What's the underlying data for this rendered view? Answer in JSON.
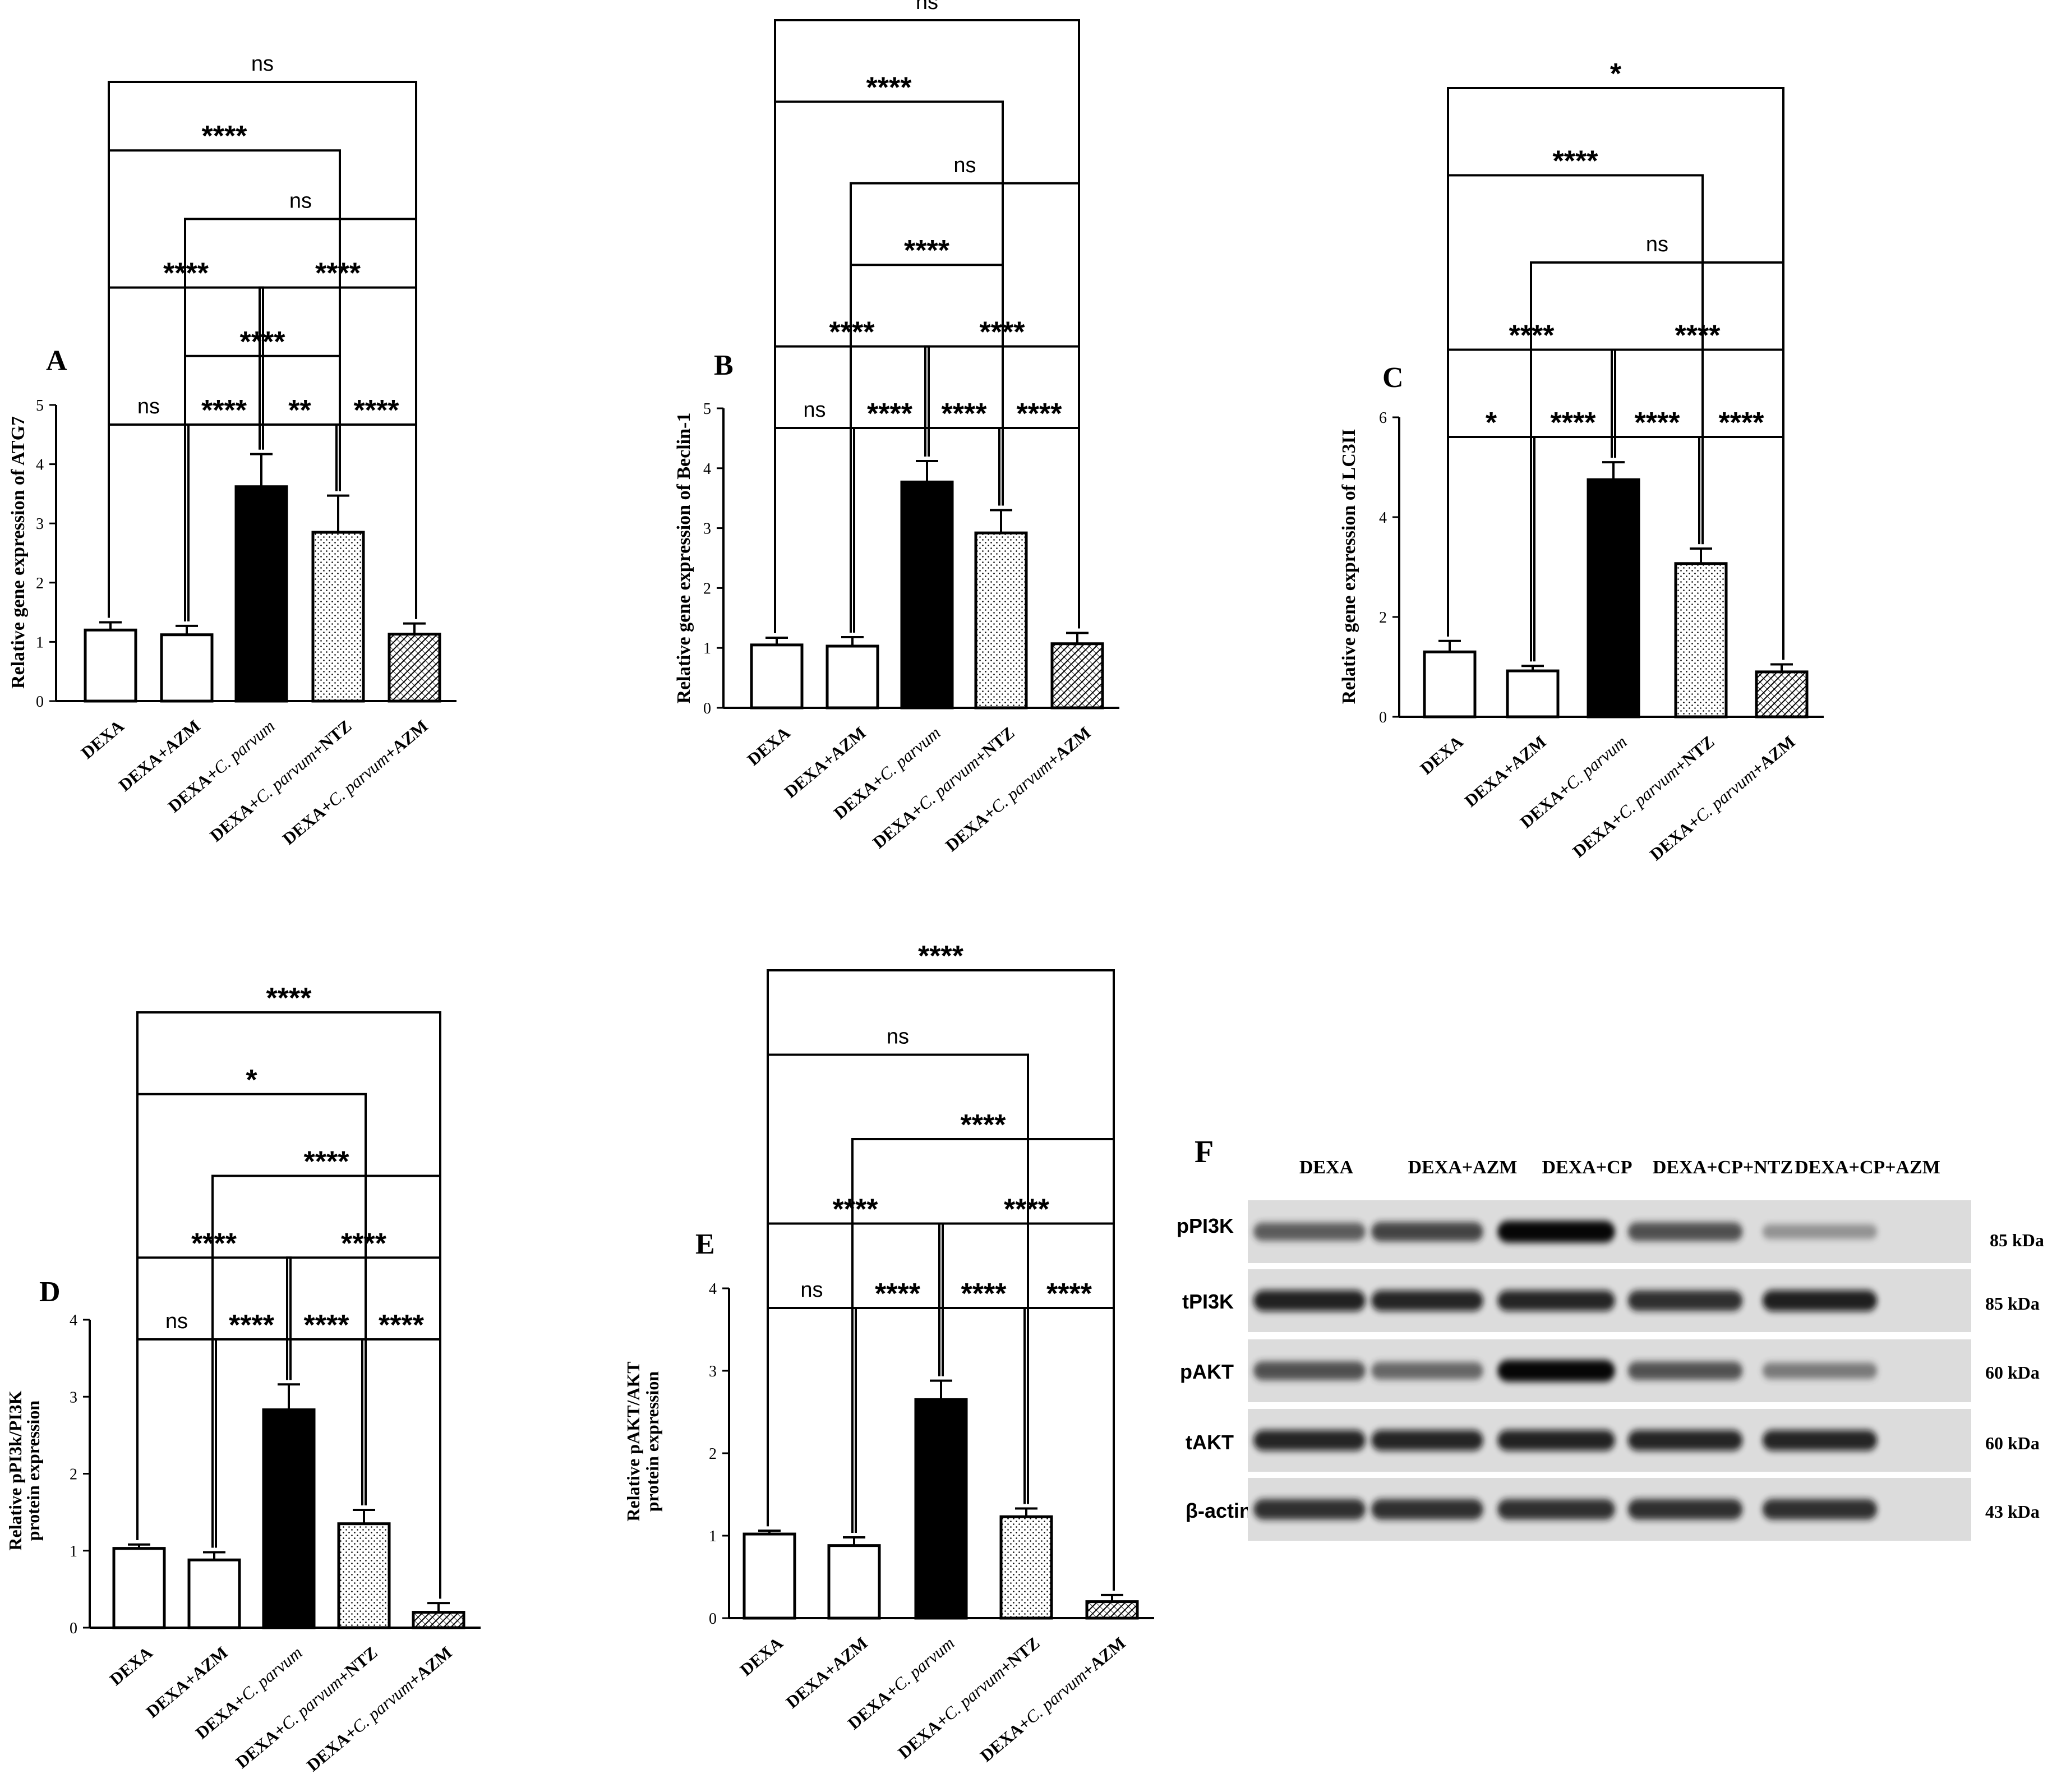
{
  "figure": {
    "panels": [
      {
        "label": "A",
        "chart_data": {
          "type": "bar",
          "ylabel": "Relative gene expression of ATG7",
          "ylim": [
            0,
            5
          ],
          "yticks": [
            "0",
            "1",
            "2",
            "3",
            "4",
            "5"
          ],
          "categories": [
            [
              "DEXA"
            ],
            [
              "DEXA+AZM"
            ],
            [
              "DEXA+",
              "C. parvum"
            ],
            [
              "DEXA+",
              "C. parvum",
              "+",
              "NTZ"
            ],
            [
              "DEXA+",
              "C. parvum",
              "+",
              "AZM"
            ]
          ],
          "values": [
            1.2,
            1.12,
            3.62,
            2.85,
            1.13
          ],
          "errors": [
            0.13,
            0.15,
            0.55,
            0.62,
            0.18
          ],
          "fills": [
            "white",
            "white",
            "black",
            "dots",
            "hatch"
          ],
          "comparisons": [
            {
              "from": 0,
              "to": 4,
              "label": "ns"
            },
            {
              "from": 1,
              "to": 4,
              "label": "ns"
            },
            {
              "from": 0,
              "to": 3,
              "label": "****"
            },
            {
              "from": 1,
              "to": 3,
              "label": "****"
            },
            {
              "from": 0,
              "to": 2,
              "label": "****"
            },
            {
              "from": 2,
              "to": 4,
              "label": "****"
            },
            {
              "from": 0,
              "to": 1,
              "label": "ns"
            },
            {
              "from": 1,
              "to": 2,
              "label": "****"
            },
            {
              "from": 2,
              "to": 3,
              "label": "**"
            },
            {
              "from": 3,
              "to": 4,
              "label": "****"
            }
          ]
        }
      },
      {
        "label": "B",
        "chart_data": {
          "type": "bar",
          "ylabel": "Relative gene expression of Beclin-1",
          "ylim": [
            0,
            5
          ],
          "yticks": [
            "0",
            "1",
            "2",
            "3",
            "4",
            "5"
          ],
          "categories": [
            [
              "DEXA"
            ],
            [
              "DEXA+AZM"
            ],
            [
              "DEXA+",
              "C. parvum"
            ],
            [
              "DEXA+",
              "C. parvum",
              "+",
              "NTZ"
            ],
            [
              "DEXA+",
              "C. parvum",
              "+",
              "AZM"
            ]
          ],
          "values": [
            1.05,
            1.03,
            3.77,
            2.92,
            1.07
          ],
          "errors": [
            0.12,
            0.15,
            0.35,
            0.38,
            0.18
          ],
          "fills": [
            "white",
            "white",
            "black",
            "dots",
            "hatch"
          ],
          "comparisons": [
            {
              "from": 0,
              "to": 4,
              "label": "ns"
            },
            {
              "from": 1,
              "to": 4,
              "label": "ns"
            },
            {
              "from": 0,
              "to": 3,
              "label": "****"
            },
            {
              "from": 2,
              "to": 4,
              "label": "****"
            },
            {
              "from": 1,
              "to": 3,
              "label": "****"
            },
            {
              "from": 0,
              "to": 2,
              "label": "****"
            },
            {
              "from": 2,
              "to": 3,
              "label": "****"
            },
            {
              "from": 0,
              "to": 1,
              "label": "ns"
            },
            {
              "from": 1,
              "to": 2,
              "label": "****"
            },
            {
              "from": 3,
              "to": 4,
              "label": "****"
            }
          ]
        }
      },
      {
        "label": "C",
        "chart_data": {
          "type": "bar",
          "ylabel": "Relative gene expression of LC3II",
          "ylim": [
            0,
            6
          ],
          "yticks": [
            "0",
            "2",
            "4",
            "6"
          ],
          "categories": [
            [
              "DEXA"
            ],
            [
              "DEXA+AZM"
            ],
            [
              "DEXA+",
              "C. parvum"
            ],
            [
              "DEXA+",
              "C. parvum",
              "+",
              "NTZ"
            ],
            [
              "DEXA+",
              "C. parvum",
              "+",
              "AZM"
            ]
          ],
          "values": [
            1.3,
            0.92,
            4.75,
            3.07,
            0.9
          ],
          "errors": [
            0.22,
            0.1,
            0.35,
            0.3,
            0.15
          ],
          "fills": [
            "white",
            "white",
            "black",
            "dots",
            "hatch"
          ],
          "comparisons": [
            {
              "from": 0,
              "to": 4,
              "label": "*"
            },
            {
              "from": 1,
              "to": 4,
              "label": "ns"
            },
            {
              "from": 0,
              "to": 3,
              "label": "****"
            },
            {
              "from": 2,
              "to": 4,
              "label": "****"
            },
            {
              "from": 0,
              "to": 2,
              "label": "****"
            },
            {
              "from": 2,
              "to": 3,
              "label": "****"
            },
            {
              "from": 0,
              "to": 1,
              "label": "*"
            },
            {
              "from": 1,
              "to": 2,
              "label": "****"
            },
            {
              "from": 3,
              "to": 4,
              "label": "****"
            }
          ]
        }
      },
      {
        "label": "D",
        "chart_data": {
          "type": "bar",
          "ylabel": [
            "Relative pPI3k/PI3K",
            "protein expression"
          ],
          "ylim": [
            0,
            4
          ],
          "yticks": [
            "0",
            "1",
            "2",
            "3",
            "4"
          ],
          "categories": [
            [
              "DEXA"
            ],
            [
              "DEXA+AZM"
            ],
            [
              "DEXA+",
              "C. parvum"
            ],
            [
              "DEXA+",
              "C. parvum",
              "+",
              "NTZ"
            ],
            [
              "DEXA+",
              "C. parvum",
              "+",
              "AZM"
            ]
          ],
          "values": [
            1.03,
            0.88,
            2.83,
            1.35,
            0.2
          ],
          "errors": [
            0.05,
            0.1,
            0.33,
            0.18,
            0.12
          ],
          "fills": [
            "white",
            "white",
            "black",
            "dots",
            "hatch"
          ],
          "comparisons": [
            {
              "from": 0,
              "to": 4,
              "label": "****"
            },
            {
              "from": 1,
              "to": 4,
              "label": "****"
            },
            {
              "from": 0,
              "to": 3,
              "label": "*"
            },
            {
              "from": 2,
              "to": 4,
              "label": "****"
            },
            {
              "from": 0,
              "to": 2,
              "label": "****"
            },
            {
              "from": 2,
              "to": 3,
              "label": "****"
            },
            {
              "from": 0,
              "to": 1,
              "label": "ns"
            },
            {
              "from": 1,
              "to": 2,
              "label": "****"
            },
            {
              "from": 3,
              "to": 4,
              "label": "****"
            }
          ]
        }
      },
      {
        "label": "E",
        "chart_data": {
          "type": "bar",
          "ylabel": [
            "Relative pAKT/AKT",
            "protein expression"
          ],
          "ylim": [
            0,
            4
          ],
          "yticks": [
            "0",
            "1",
            "2",
            "3",
            "4"
          ],
          "categories": [
            [
              "DEXA"
            ],
            [
              "DEXA+AZM"
            ],
            [
              "DEXA+",
              "C. parvum"
            ],
            [
              "DEXA+",
              "C. parvum",
              "+",
              "NTZ"
            ],
            [
              "DEXA+",
              "C. parvum",
              "+",
              "AZM"
            ]
          ],
          "values": [
            1.02,
            0.88,
            2.65,
            1.23,
            0.2
          ],
          "errors": [
            0.04,
            0.1,
            0.23,
            0.1,
            0.08
          ],
          "fills": [
            "white",
            "white",
            "black",
            "dots",
            "hatch"
          ],
          "comparisons": [
            {
              "from": 0,
              "to": 4,
              "label": "****"
            },
            {
              "from": 1,
              "to": 4,
              "label": "****"
            },
            {
              "from": 0,
              "to": 3,
              "label": "ns"
            },
            {
              "from": 2,
              "to": 4,
              "label": "****"
            },
            {
              "from": 0,
              "to": 2,
              "label": "****"
            },
            {
              "from": 2,
              "to": 3,
              "label": "****"
            },
            {
              "from": 0,
              "to": 1,
              "label": "ns"
            },
            {
              "from": 1,
              "to": 2,
              "label": "****"
            },
            {
              "from": 3,
              "to": 4,
              "label": "****"
            }
          ]
        }
      }
    ],
    "blot": {
      "label": "F",
      "lanes": [
        "DEXA",
        "DEXA+AZM",
        "DEXA+CP",
        "DEXA+CP+NTZ",
        "DEXA+CP+AZM"
      ],
      "rows": [
        {
          "protein": "pPI3K",
          "size": "85 kDa",
          "intensity": [
            0.55,
            0.68,
            0.95,
            0.62,
            0.22
          ]
        },
        {
          "protein": "tPI3K",
          "size": "85 kDa",
          "intensity": [
            0.85,
            0.82,
            0.82,
            0.8,
            0.86
          ]
        },
        {
          "protein": "pAKT",
          "size": "60 kDa",
          "intensity": [
            0.62,
            0.5,
            0.95,
            0.6,
            0.38
          ]
        },
        {
          "protein": "tAKT",
          "size": "60 kDa",
          "intensity": [
            0.82,
            0.82,
            0.84,
            0.82,
            0.82
          ]
        },
        {
          "protein": "β-actin",
          "size": "43 kDa",
          "intensity": [
            0.8,
            0.8,
            0.8,
            0.8,
            0.8
          ]
        }
      ]
    }
  }
}
